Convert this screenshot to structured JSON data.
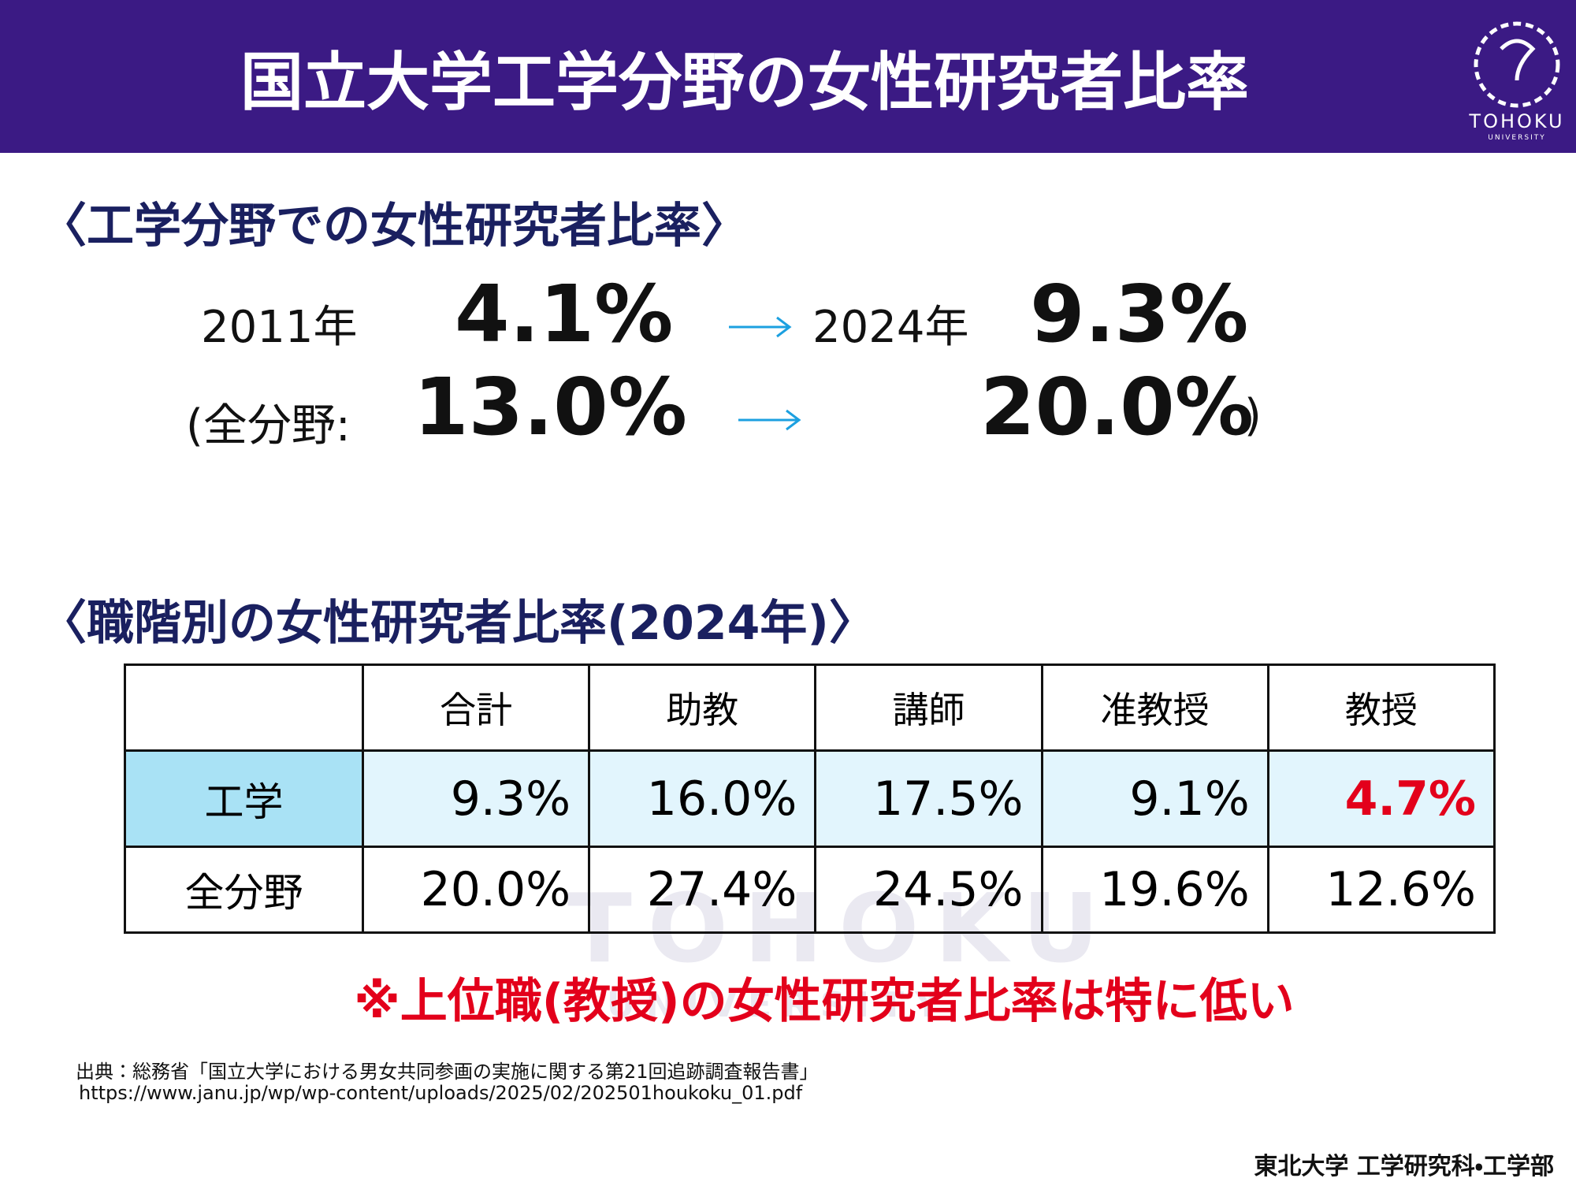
{
  "header": {
    "title": "国立大学工学分野の女性研究者比率",
    "logo": {
      "name": "TOHOKU",
      "sub": "UNIVERSITY"
    }
  },
  "section1": {
    "heading": "〈工学分野での女性研究者比率〉",
    "rows": [
      {
        "from_label": "2011年",
        "from_value": "4.1%",
        "to_label": "2024年",
        "to_value": "9.3%"
      },
      {
        "from_label": "(全分野:",
        "from_value": "13.0%",
        "to_value": "20.0%",
        "close": ")"
      }
    ]
  },
  "section2": {
    "heading": "〈職階別の女性研究者比率(2024年)〉"
  },
  "table": {
    "columns": [
      "合計",
      "助教",
      "講師",
      "准教授",
      "教授"
    ],
    "rows": [
      {
        "label": "工学",
        "cells": [
          "9.3%",
          "16.0%",
          "17.5%",
          "9.1%",
          "4.7%"
        ]
      },
      {
        "label": "全分野",
        "cells": [
          "20.0%",
          "27.4%",
          "24.5%",
          "19.6%",
          "12.6%"
        ]
      }
    ]
  },
  "note": "※上位職(教授)の女性研究者比率は特に低い",
  "source": {
    "text": "出典：総務省「国立大学における男女共同参画の実施に関する第21回追跡調査報告書」",
    "url": "https://www.janu.jp/wp/wp-content/uploads/2025/02/202501houkoku_01.pdf"
  },
  "footer": "東北大学 工学研究科・工学部"
}
